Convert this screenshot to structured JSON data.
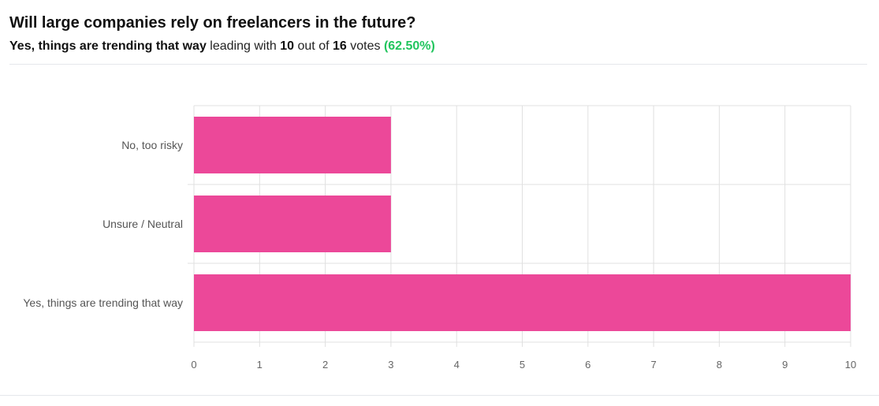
{
  "header": {
    "question": "Will large companies rely on freelancers in the future?",
    "leader_option": "Yes, things are trending that way",
    "leading_with_text": "leading with",
    "leader_votes": "10",
    "out_of_text": "out of",
    "total_votes": "16",
    "votes_text": "votes",
    "leader_percent": "(62.50%)"
  },
  "colors": {
    "bar": "#ec4899",
    "percent": "#22c55e",
    "grid": "#e0e0e0"
  },
  "chart_data": {
    "type": "bar",
    "orientation": "horizontal",
    "categories": [
      "No, too risky",
      "Unsure / Neutral",
      "Yes, things are trending that way"
    ],
    "values": [
      3,
      3,
      10
    ],
    "xlim": [
      0,
      10
    ],
    "xticks": [
      "0",
      "1",
      "2",
      "3",
      "4",
      "5",
      "6",
      "7",
      "8",
      "9",
      "10"
    ],
    "grid": true,
    "legend": "none"
  }
}
